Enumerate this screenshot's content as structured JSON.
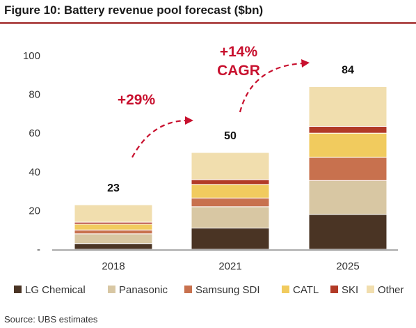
{
  "title": "Figure 10: Battery revenue pool forecast ($bn)",
  "source": "Source:  UBS estimates",
  "chart_data": {
    "type": "bar",
    "stacked": true,
    "categories": [
      "2018",
      "2021",
      "2025"
    ],
    "totals": [
      "23",
      "50",
      "84"
    ],
    "ylim": [
      0,
      100
    ],
    "yticks": [
      {
        "value": 0,
        "label": "-"
      },
      {
        "value": 20,
        "label": "20"
      },
      {
        "value": 40,
        "label": "40"
      },
      {
        "value": 60,
        "label": "60"
      },
      {
        "value": 80,
        "label": "80"
      },
      {
        "value": 100,
        "label": "100"
      }
    ],
    "grid": false,
    "legend_position": "bottom",
    "series": [
      {
        "name": "LG Chemical",
        "color": "#4a3424",
        "values": [
          3,
          11,
          18
        ]
      },
      {
        "name": "Panasonic",
        "color": "#d8c7a3",
        "values": [
          5,
          11,
          17.5
        ]
      },
      {
        "name": "Samsung SDI",
        "color": "#c8714e",
        "values": [
          2,
          4.5,
          12
        ]
      },
      {
        "name": "CATL",
        "color": "#f1cb5e",
        "values": [
          3,
          7,
          12.5
        ]
      },
      {
        "name": "SKI",
        "color": "#b23a27",
        "values": [
          1,
          2.5,
          3.5
        ]
      },
      {
        "name": "Other",
        "color": "#f1deae",
        "values": [
          9,
          14,
          20.5
        ]
      }
    ],
    "annotations": [
      {
        "text": "+29%",
        "color": "#c8102e"
      },
      {
        "text": "+14%",
        "color": "#c8102e"
      },
      {
        "text": "CAGR",
        "color": "#c8102e"
      }
    ]
  }
}
